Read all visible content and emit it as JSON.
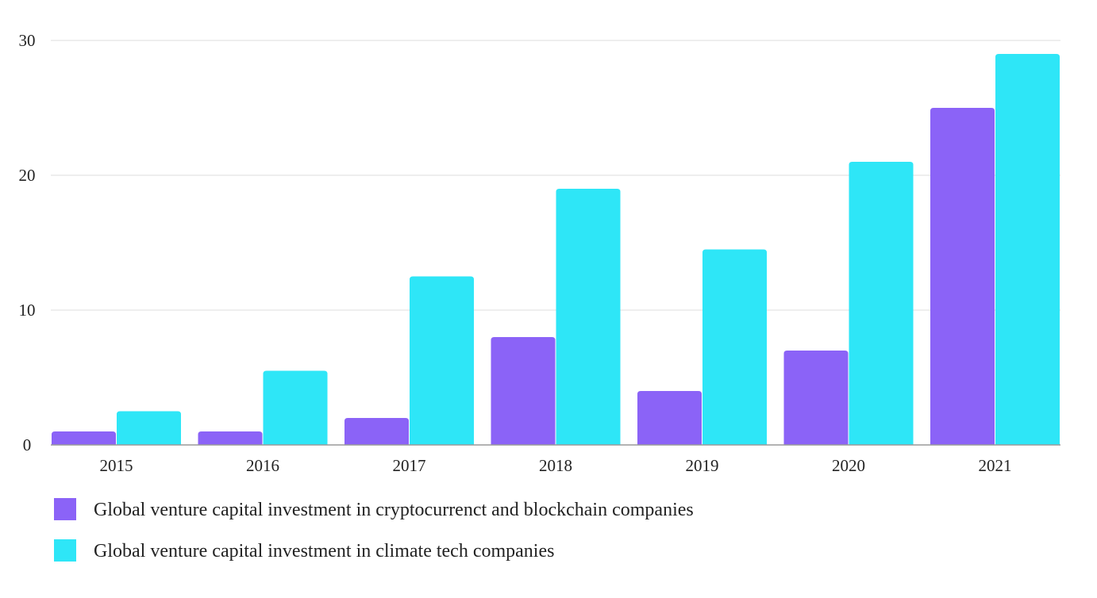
{
  "chart_data": {
    "type": "bar",
    "categories": [
      "2015",
      "2016",
      "2017",
      "2018",
      "2019",
      "2020",
      "2021"
    ],
    "series": [
      {
        "name": "Global venture capital investment in cryptocurrenct and blockchain companies",
        "color": "#8b63f7",
        "values": [
          1,
          1,
          2,
          8,
          4,
          7,
          25
        ]
      },
      {
        "name": "Global venture capital investment in climate tech companies",
        "color": "#2ee6f7",
        "values": [
          2.5,
          5.5,
          12.5,
          19,
          14.5,
          21,
          29
        ]
      }
    ],
    "yticks": [
      "0",
      "10",
      "20",
      "30"
    ],
    "ylim": [
      0,
      30
    ],
    "grid": true,
    "legend_position": "bottom-left"
  }
}
